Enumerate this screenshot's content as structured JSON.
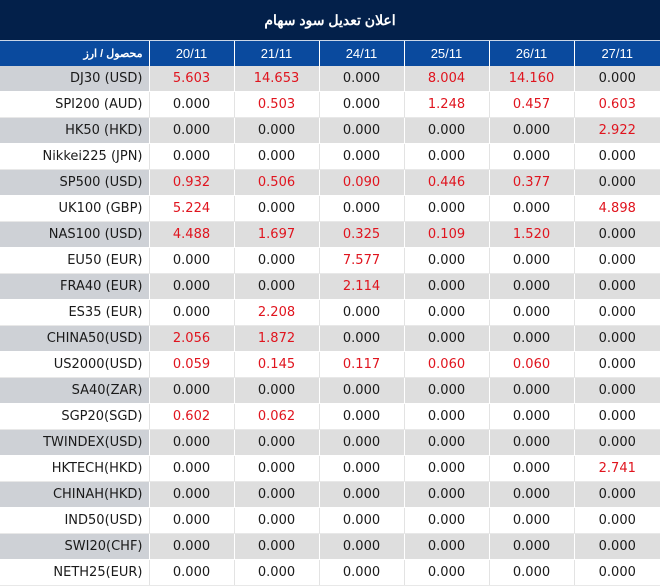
{
  "title": "اعلان تعدیل سود سهام",
  "table": {
    "header": {
      "product_label": "محصول / ارز",
      "dates": [
        "20/11",
        "21/11",
        "24/11",
        "25/11",
        "26/11",
        "27/11"
      ]
    },
    "rows": [
      {
        "product": "DJ30 (USD)",
        "values": [
          "5.603",
          "14.653",
          "0.000",
          "8.004",
          "14.160",
          "0.000"
        ]
      },
      {
        "product": "SPI200 (AUD)",
        "values": [
          "0.000",
          "0.503",
          "0.000",
          "1.248",
          "0.457",
          "0.603"
        ]
      },
      {
        "product": "HK50 (HKD)",
        "values": [
          "0.000",
          "0.000",
          "0.000",
          "0.000",
          "0.000",
          "2.922"
        ]
      },
      {
        "product": "Nikkei225 (JPN)",
        "values": [
          "0.000",
          "0.000",
          "0.000",
          "0.000",
          "0.000",
          "0.000"
        ]
      },
      {
        "product": "SP500 (USD)",
        "values": [
          "0.932",
          "0.506",
          "0.090",
          "0.446",
          "0.377",
          "0.000"
        ]
      },
      {
        "product": "UK100 (GBP)",
        "values": [
          "5.224",
          "0.000",
          "0.000",
          "0.000",
          "0.000",
          "4.898"
        ]
      },
      {
        "product": "NAS100 (USD)",
        "values": [
          "4.488",
          "1.697",
          "0.325",
          "0.109",
          "1.520",
          "0.000"
        ]
      },
      {
        "product": "EU50 (EUR)",
        "values": [
          "0.000",
          "0.000",
          "7.577",
          "0.000",
          "0.000",
          "0.000"
        ]
      },
      {
        "product": "FRA40 (EUR)",
        "values": [
          "0.000",
          "0.000",
          "2.114",
          "0.000",
          "0.000",
          "0.000"
        ]
      },
      {
        "product": "ES35 (EUR)",
        "values": [
          "0.000",
          "2.208",
          "0.000",
          "0.000",
          "0.000",
          "0.000"
        ]
      },
      {
        "product": "CHINA50(USD)",
        "values": [
          "2.056",
          "1.872",
          "0.000",
          "0.000",
          "0.000",
          "0.000"
        ]
      },
      {
        "product": "US2000(USD)",
        "values": [
          "0.059",
          "0.145",
          "0.117",
          "0.060",
          "0.060",
          "0.000"
        ]
      },
      {
        "product": "SA40(ZAR)",
        "values": [
          "0.000",
          "0.000",
          "0.000",
          "0.000",
          "0.000",
          "0.000"
        ]
      },
      {
        "product": "SGP20(SGD)",
        "values": [
          "0.602",
          "0.062",
          "0.000",
          "0.000",
          "0.000",
          "0.000"
        ]
      },
      {
        "product": "TWINDEX(USD)",
        "values": [
          "0.000",
          "0.000",
          "0.000",
          "0.000",
          "0.000",
          "0.000"
        ]
      },
      {
        "product": "HKTECH(HKD)",
        "values": [
          "0.000",
          "0.000",
          "0.000",
          "0.000",
          "0.000",
          "2.741"
        ]
      },
      {
        "product": "CHINAH(HKD)",
        "values": [
          "0.000",
          "0.000",
          "0.000",
          "0.000",
          "0.000",
          "0.000"
        ]
      },
      {
        "product": "IND50(USD)",
        "values": [
          "0.000",
          "0.000",
          "0.000",
          "0.000",
          "0.000",
          "0.000"
        ]
      },
      {
        "product": "SWI20(CHF)",
        "values": [
          "0.000",
          "0.000",
          "0.000",
          "0.000",
          "0.000",
          "0.000"
        ]
      },
      {
        "product": "NETH25(EUR)",
        "values": [
          "0.000",
          "0.000",
          "0.000",
          "0.000",
          "0.000",
          "0.000"
        ]
      }
    ]
  },
  "colors": {
    "title_bg": "#03204a",
    "header_bg": "#0a4a9e",
    "nonzero_value": "#e0141e",
    "zero_value": "#1a1a1a",
    "row_alt_bg": "#dedede",
    "product_alt_bg": "#ced1d6"
  }
}
